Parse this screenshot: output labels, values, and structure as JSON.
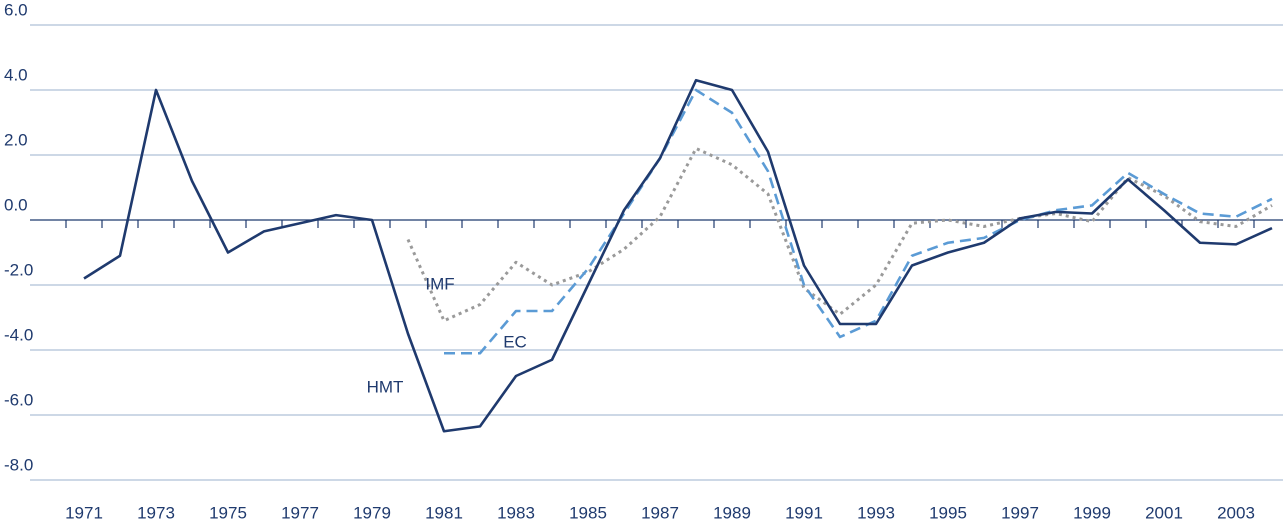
{
  "chart_data": {
    "type": "line",
    "categories": [
      null,
      "1971",
      null,
      "1973",
      null,
      "1975",
      null,
      "1977",
      null,
      "1979",
      null,
      "1981",
      null,
      "1983",
      null,
      "1985",
      null,
      "1987",
      null,
      "1989",
      null,
      "1991",
      null,
      "1993",
      null,
      "1995",
      null,
      "1997",
      null,
      "1999",
      null,
      "2001",
      null,
      "2003",
      null
    ],
    "ylim": [
      -8,
      6
    ],
    "yticks": [
      {
        "value": 6,
        "label": "6.0"
      },
      {
        "value": 4,
        "label": "4.0"
      },
      {
        "value": 2,
        "label": "2.0"
      },
      {
        "value": 0,
        "label": "0.0"
      },
      {
        "value": -2,
        "label": "-2.0"
      },
      {
        "value": -4,
        "label": "-4.0"
      },
      {
        "value": -6,
        "label": "-6.0"
      },
      {
        "value": -8,
        "label": "-8.0"
      }
    ],
    "grid": true,
    "series": [
      {
        "name": "HMT",
        "color": "#1f3a6e",
        "style": "solid",
        "values": [
          null,
          -1.8,
          -1.1,
          4.0,
          1.2,
          -1.0,
          -0.35,
          -0.1,
          0.15,
          0.0,
          -3.5,
          -6.5,
          -6.35,
          -4.8,
          -4.3,
          -2.0,
          0.3,
          1.9,
          4.3,
          4.0,
          2.1,
          -1.4,
          -3.2,
          -3.2,
          -1.4,
          -1.0,
          -0.7,
          0.05,
          0.25,
          0.2,
          1.25,
          0.3,
          -0.7,
          -0.75,
          -0.25
        ]
      },
      {
        "name": "EC",
        "color": "#5b9bd5",
        "style": "dashed",
        "values": [
          null,
          null,
          null,
          null,
          null,
          null,
          null,
          null,
          null,
          null,
          null,
          -4.1,
          -4.1,
          -2.8,
          -2.8,
          -1.5,
          0.2,
          1.9,
          4.0,
          3.3,
          1.5,
          -2.0,
          -3.6,
          -3.1,
          -1.1,
          -0.7,
          -0.55,
          0.0,
          0.3,
          0.45,
          1.45,
          0.8,
          0.2,
          0.1,
          0.65
        ]
      },
      {
        "name": "IMF",
        "color": "#9a9a9a",
        "style": "dotted",
        "values": [
          null,
          null,
          null,
          null,
          null,
          null,
          null,
          null,
          null,
          null,
          -0.6,
          -3.1,
          -2.6,
          -1.3,
          -2.0,
          -1.6,
          -0.9,
          0.1,
          2.2,
          1.7,
          0.8,
          -2.1,
          -2.9,
          -2.0,
          -0.1,
          0.0,
          -0.2,
          0.05,
          0.2,
          -0.05,
          1.3,
          0.75,
          -0.05,
          -0.2,
          0.45
        ]
      }
    ]
  }
}
